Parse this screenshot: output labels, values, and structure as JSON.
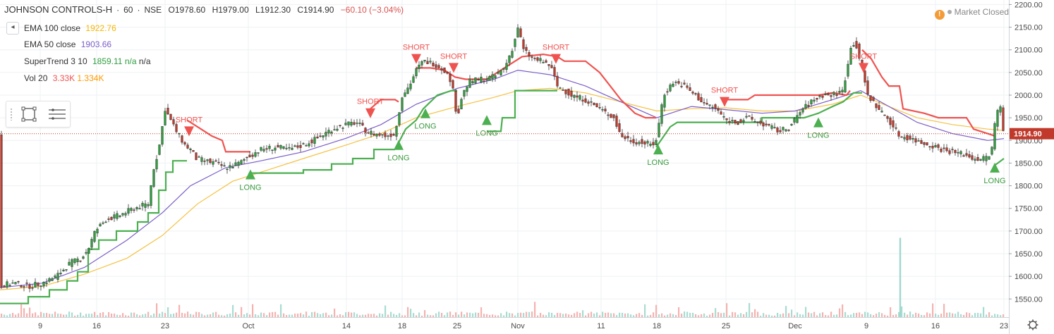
{
  "header": {
    "symbol": "JOHNSON CONTROLS-H",
    "interval": "60",
    "exchange": "NSE",
    "open": "O1978.60",
    "high": "H1979.00",
    "low": "L1912.30",
    "close": "C1914.90",
    "change": "−60.10 (−3.04%)"
  },
  "collapse_label": "◂",
  "indicators": [
    {
      "name": "EMA 100 close",
      "value": "1922.76",
      "color": "#f5b700"
    },
    {
      "name": "EMA 50 close",
      "value": "1903.66",
      "color": "#7b5ec7"
    },
    {
      "name": "SuperTrend 3 10",
      "value": "1859.11",
      "value2": "n/a",
      "value3": "n/a",
      "color": "#2e9e3e"
    },
    {
      "name": "Vol 20",
      "value": "3.33K",
      "value2": "1.334K",
      "color": "#ef5350",
      "color2": "#ff9800"
    }
  ],
  "market_status": {
    "icon": "warning-icon",
    "label": "Market Closed"
  },
  "colors": {
    "up": "#2e9e3e",
    "down": "#c0392b",
    "supertrend_up": "#4caf50",
    "supertrend_down": "#ef5350",
    "ema100": "#f5c242",
    "ema50": "#7b5ec7",
    "volume": "#9fd8cf",
    "price_line": "#c0392b"
  },
  "chart_data": {
    "type": "line",
    "yticks": [
      1550,
      1600,
      1650,
      1700,
      1750,
      1800,
      1850,
      1900,
      1950,
      2000,
      2050,
      2100,
      2150,
      2200
    ],
    "ytick_labels": [
      "1550.00",
      "1600.00",
      "1650.00",
      "1700.00",
      "1750.00",
      "1800.00",
      "1850.00",
      "1900.00",
      "1950.00",
      "2000.00",
      "2050.00",
      "2100.00",
      "2150.00",
      "2200.00"
    ],
    "ylim": [
      1510,
      2210
    ],
    "xlim": [
      0,
      1430
    ],
    "xticks": [
      {
        "label": "9",
        "x": 57
      },
      {
        "label": "16",
        "x": 137
      },
      {
        "label": "23",
        "x": 234
      },
      {
        "label": "Oct",
        "x": 352
      },
      {
        "label": "14",
        "x": 491
      },
      {
        "label": "18",
        "x": 570
      },
      {
        "label": "25",
        "x": 648
      },
      {
        "label": "Nov",
        "x": 734
      },
      {
        "label": "11",
        "x": 852
      },
      {
        "label": "18",
        "x": 931
      },
      {
        "label": "25",
        "x": 1029
      },
      {
        "label": "Dec",
        "x": 1127
      },
      {
        "label": "9",
        "x": 1228
      },
      {
        "label": "16",
        "x": 1326
      },
      {
        "label": "23",
        "x": 1423
      }
    ],
    "last_price": {
      "value": 1914.9,
      "label": "1914.90"
    },
    "close_path": [
      [
        0,
        1580
      ],
      [
        20,
        1585
      ],
      [
        40,
        1578
      ],
      [
        60,
        1585
      ],
      [
        80,
        1600
      ],
      [
        100,
        1630
      ],
      [
        115,
        1640
      ],
      [
        125,
        1660
      ],
      [
        135,
        1700
      ],
      [
        150,
        1725
      ],
      [
        170,
        1735
      ],
      [
        190,
        1750
      ],
      [
        210,
        1760
      ],
      [
        218,
        1840
      ],
      [
        225,
        1880
      ],
      [
        234,
        1970
      ],
      [
        240,
        1950
      ],
      [
        250,
        1920
      ],
      [
        262,
        1890
      ],
      [
        270,
        1880
      ],
      [
        278,
        1860
      ],
      [
        290,
        1855
      ],
      [
        305,
        1850
      ],
      [
        320,
        1840
      ],
      [
        340,
        1850
      ],
      [
        352,
        1865
      ],
      [
        370,
        1880
      ],
      [
        390,
        1885
      ],
      [
        410,
        1880
      ],
      [
        430,
        1890
      ],
      [
        450,
        1905
      ],
      [
        470,
        1925
      ],
      [
        491,
        1935
      ],
      [
        505,
        1940
      ],
      [
        520,
        1920
      ],
      [
        530,
        1915
      ],
      [
        545,
        1910
      ],
      [
        560,
        1915
      ],
      [
        570,
        2000
      ],
      [
        580,
        2020
      ],
      [
        590,
        2055
      ],
      [
        600,
        2075
      ],
      [
        615,
        2070
      ],
      [
        630,
        2055
      ],
      [
        640,
        2030
      ],
      [
        648,
        1950
      ],
      [
        655,
        2000
      ],
      [
        665,
        2030
      ],
      [
        680,
        2035
      ],
      [
        700,
        2040
      ],
      [
        715,
        2060
      ],
      [
        728,
        2110
      ],
      [
        734,
        2150
      ],
      [
        742,
        2100
      ],
      [
        755,
        2080
      ],
      [
        768,
        2075
      ],
      [
        780,
        2065
      ],
      [
        790,
        2020
      ],
      [
        810,
        2000
      ],
      [
        830,
        1990
      ],
      [
        850,
        1970
      ],
      [
        870,
        1950
      ],
      [
        880,
        1910
      ],
      [
        895,
        1900
      ],
      [
        910,
        1895
      ],
      [
        925,
        1890
      ],
      [
        931,
        1905
      ],
      [
        940,
        2000
      ],
      [
        955,
        2030
      ],
      [
        970,
        2020
      ],
      [
        985,
        2000
      ],
      [
        1000,
        1980
      ],
      [
        1015,
        1970
      ],
      [
        1029,
        1945
      ],
      [
        1045,
        1940
      ],
      [
        1060,
        1950
      ],
      [
        1075,
        1940
      ],
      [
        1090,
        1930
      ],
      [
        1105,
        1920
      ],
      [
        1120,
        1930
      ],
      [
        1135,
        1965
      ],
      [
        1150,
        1985
      ],
      [
        1165,
        2000
      ],
      [
        1180,
        2000
      ],
      [
        1195,
        2010
      ],
      [
        1205,
        2100
      ],
      [
        1212,
        2120
      ],
      [
        1220,
        2070
      ],
      [
        1230,
        2000
      ],
      [
        1245,
        1970
      ],
      [
        1260,
        1945
      ],
      [
        1275,
        1910
      ],
      [
        1290,
        1905
      ],
      [
        1305,
        1895
      ],
      [
        1320,
        1890
      ],
      [
        1335,
        1880
      ],
      [
        1350,
        1875
      ],
      [
        1365,
        1870
      ],
      [
        1380,
        1860
      ],
      [
        1395,
        1860
      ],
      [
        1405,
        1870
      ],
      [
        1412,
        1960
      ],
      [
        1418,
        1975
      ],
      [
        1423,
        1915
      ]
    ],
    "ema100_path": [
      [
        0,
        1570
      ],
      [
        60,
        1578
      ],
      [
        120,
        1605
      ],
      [
        180,
        1640
      ],
      [
        230,
        1690
      ],
      [
        280,
        1760
      ],
      [
        330,
        1810
      ],
      [
        380,
        1835
      ],
      [
        430,
        1860
      ],
      [
        491,
        1890
      ],
      [
        540,
        1915
      ],
      [
        590,
        1950
      ],
      [
        648,
        1975
      ],
      [
        700,
        1995
      ],
      [
        734,
        2010
      ],
      [
        780,
        2015
      ],
      [
        830,
        2005
      ],
      [
        880,
        1985
      ],
      [
        931,
        1965
      ],
      [
        980,
        1970
      ],
      [
        1029,
        1972
      ],
      [
        1080,
        1965
      ],
      [
        1127,
        1965
      ],
      [
        1180,
        1980
      ],
      [
        1220,
        2000
      ],
      [
        1260,
        1975
      ],
      [
        1300,
        1950
      ],
      [
        1350,
        1935
      ],
      [
        1400,
        1925
      ],
      [
        1423,
        1922
      ]
    ],
    "ema50_path": [
      [
        0,
        1575
      ],
      [
        60,
        1585
      ],
      [
        120,
        1620
      ],
      [
        180,
        1680
      ],
      [
        230,
        1740
      ],
      [
        270,
        1800
      ],
      [
        320,
        1840
      ],
      [
        370,
        1855
      ],
      [
        430,
        1875
      ],
      [
        491,
        1905
      ],
      [
        540,
        1935
      ],
      [
        590,
        1980
      ],
      [
        648,
        2015
      ],
      [
        700,
        2035
      ],
      [
        734,
        2055
      ],
      [
        780,
        2045
      ],
      [
        830,
        2020
      ],
      [
        880,
        1985
      ],
      [
        931,
        1950
      ],
      [
        980,
        1975
      ],
      [
        1029,
        1968
      ],
      [
        1080,
        1960
      ],
      [
        1127,
        1965
      ],
      [
        1180,
        1990
      ],
      [
        1220,
        2010
      ],
      [
        1260,
        1975
      ],
      [
        1300,
        1940
      ],
      [
        1350,
        1915
      ],
      [
        1400,
        1900
      ],
      [
        1423,
        1904
      ]
    ],
    "supertrend_segments": [
      {
        "trend": "up",
        "points": [
          [
            0,
            1540
          ],
          [
            40,
            1540
          ],
          [
            40,
            1555
          ],
          [
            70,
            1555
          ],
          [
            70,
            1570
          ],
          [
            95,
            1570
          ],
          [
            95,
            1590
          ],
          [
            110,
            1590
          ],
          [
            110,
            1610
          ],
          [
            125,
            1610
          ],
          [
            125,
            1660
          ],
          [
            140,
            1660
          ],
          [
            140,
            1680
          ],
          [
            165,
            1680
          ],
          [
            165,
            1700
          ],
          [
            195,
            1700
          ],
          [
            195,
            1720
          ],
          [
            210,
            1720
          ],
          [
            210,
            1740
          ],
          [
            225,
            1740
          ],
          [
            225,
            1790
          ],
          [
            235,
            1790
          ],
          [
            235,
            1830
          ],
          [
            245,
            1830
          ],
          [
            245,
            1855
          ],
          [
            265,
            1855
          ]
        ]
      },
      {
        "trend": "down",
        "points": [
          [
            265,
            1945
          ],
          [
            275,
            1935
          ],
          [
            290,
            1920
          ],
          [
            300,
            1910
          ],
          [
            315,
            1900
          ],
          [
            320,
            1875
          ],
          [
            340,
            1875
          ],
          [
            355,
            1875
          ]
        ]
      },
      {
        "trend": "up",
        "points": [
          [
            355,
            1828
          ],
          [
            430,
            1828
          ],
          [
            430,
            1835
          ],
          [
            470,
            1835
          ],
          [
            470,
            1848
          ],
          [
            500,
            1848
          ],
          [
            500,
            1860
          ],
          [
            530,
            1860
          ],
          [
            530,
            1880
          ],
          [
            560,
            1880
          ]
        ]
      },
      {
        "trend": "down",
        "points": [
          [
            525,
            1970
          ],
          [
            540,
            1990
          ],
          [
            560,
            1990
          ],
          [
            565,
            1985
          ]
        ]
      },
      {
        "trend": "up",
        "points": [
          [
            565,
            1895
          ],
          [
            575,
            1925
          ],
          [
            590,
            1945
          ],
          [
            600,
            1970
          ],
          [
            620,
            2000
          ],
          [
            640,
            2010
          ],
          [
            648,
            2010
          ]
        ]
      },
      {
        "trend": "down",
        "points": [
          [
            590,
            2060
          ],
          [
            610,
            2060
          ],
          [
            630,
            2055
          ],
          [
            645,
            2040
          ],
          [
            660,
            2035
          ],
          [
            690,
            2035
          ],
          [
            710,
            2055
          ],
          [
            740,
            2085
          ],
          [
            770,
            2090
          ],
          [
            790,
            2085
          ],
          [
            800,
            2075
          ],
          [
            830,
            2075
          ],
          [
            850,
            2050
          ],
          [
            865,
            2020
          ],
          [
            880,
            1990
          ],
          [
            900,
            1960
          ],
          [
            915,
            1950
          ],
          [
            930,
            1950
          ]
        ]
      },
      {
        "trend": "up",
        "points": [
          [
            690,
            1920
          ],
          [
            710,
            1920
          ],
          [
            712,
            1950
          ],
          [
            730,
            1950
          ],
          [
            730,
            2010
          ],
          [
            790,
            2010
          ]
        ]
      },
      {
        "trend": "up",
        "points": [
          [
            930,
            1885
          ],
          [
            950,
            1930
          ],
          [
            960,
            1940
          ],
          [
            1080,
            1940
          ],
          [
            1080,
            1950
          ],
          [
            1140,
            1950
          ],
          [
            1160,
            1960
          ],
          [
            1180,
            1975
          ],
          [
            1195,
            1985
          ],
          [
            1210,
            2005
          ],
          [
            1222,
            2005
          ]
        ]
      },
      {
        "trend": "down",
        "points": [
          [
            1030,
            1990
          ],
          [
            1060,
            1990
          ],
          [
            1070,
            2000
          ],
          [
            1160,
            2000
          ],
          [
            1180,
            2005
          ],
          [
            1200,
            2000
          ],
          [
            1205,
            2010
          ]
        ]
      },
      {
        "trend": "down",
        "points": [
          [
            1222,
            2100
          ],
          [
            1235,
            2080
          ],
          [
            1250,
            2040
          ],
          [
            1260,
            2020
          ],
          [
            1275,
            2020
          ],
          [
            1280,
            1970
          ],
          [
            1310,
            1960
          ],
          [
            1330,
            1950
          ],
          [
            1370,
            1950
          ],
          [
            1380,
            1925
          ],
          [
            1400,
            1915
          ],
          [
            1410,
            1910
          ]
        ]
      },
      {
        "trend": "up",
        "points": [
          [
            1410,
            1845
          ],
          [
            1423,
            1860
          ]
        ]
      }
    ],
    "signals": [
      {
        "label": "SHORT",
        "x": 268,
        "price": 1920,
        "type": "short"
      },
      {
        "label": "LONG",
        "x": 355,
        "price": 1825,
        "type": "long"
      },
      {
        "label": "SHORT",
        "x": 525,
        "price": 1960,
        "type": "short"
      },
      {
        "label": "LONG",
        "x": 565,
        "price": 1890,
        "type": "long"
      },
      {
        "label": "SHORT",
        "x": 590,
        "price": 2080,
        "type": "short"
      },
      {
        "label": "LONG",
        "x": 603,
        "price": 1960,
        "type": "long"
      },
      {
        "label": "SHORT",
        "x": 643,
        "price": 2060,
        "type": "short"
      },
      {
        "label": "LONG",
        "x": 690,
        "price": 1945,
        "type": "long"
      },
      {
        "label": "SHORT",
        "x": 788,
        "price": 2080,
        "type": "short"
      },
      {
        "label": "LONG",
        "x": 933,
        "price": 1880,
        "type": "long"
      },
      {
        "label": "SHORT",
        "x": 1027,
        "price": 1985,
        "type": "short"
      },
      {
        "label": "LONG",
        "x": 1160,
        "price": 1940,
        "type": "long"
      },
      {
        "label": "SHORT",
        "x": 1224,
        "price": 2060,
        "type": "short"
      },
      {
        "label": "LONG",
        "x": 1410,
        "price": 1840,
        "type": "long"
      }
    ],
    "volume_spike": {
      "x": 1276,
      "price": 1685
    }
  }
}
